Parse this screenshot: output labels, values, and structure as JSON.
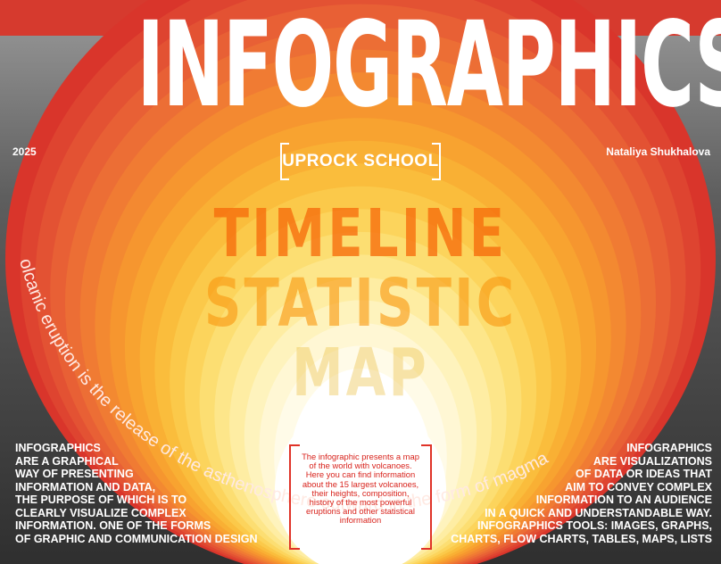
{
  "header": {
    "title": "INFOGRAPHICS",
    "year": "2025",
    "author": "Nataliya Shukhalova",
    "school": "UPROCK SCHOOL"
  },
  "center_words": [
    "TIMELINE",
    "STATISTIC",
    "MAP"
  ],
  "arc_text": "olcanic eruption is the release of the asthenosphere outward in the form of magma",
  "left_block": [
    "INFOGRAPHICS",
    "ARE A GRAPHICAL",
    "WAY OF PRESENTING",
    "INFORMATION AND DATA,",
    "THE PURPOSE OF WHICH IS TO",
    "CLEARLY VISUALIZE COMPLEX",
    "INFORMATION. ONE OF THE FORMS",
    "OF GRAPHIC AND COMMUNICATION DESIGN"
  ],
  "right_block": [
    "INFOGRAPHICS",
    "ARE VISUALIZATIONS",
    "OF DATA OR IDEAS THAT",
    "AIM TO CONVEY COMPLEX",
    "INFORMATION TO AN AUDIENCE",
    "IN A QUICK AND UNDERSTANDABLE WAY.",
    "INFOGRAPHICS TOOLS: IMAGES, GRAPHS,",
    "CHARTS, FLOW CHARTS, TABLES, MAPS, LISTS"
  ],
  "center_note": [
    "The infographic presents a map",
    "of the world with volcanoes.",
    "Here you can find information",
    "about the 15 largest volcanoes,",
    "their heights, composition,",
    "history of the most powerful",
    "eruptions and other statistical",
    "information"
  ],
  "colors": {
    "outer_red": "#d63a2e",
    "orange": "#f7931e",
    "yellow_core": "#fff3c8",
    "gray_panel": "#444444",
    "accent_red": "#e03328"
  }
}
